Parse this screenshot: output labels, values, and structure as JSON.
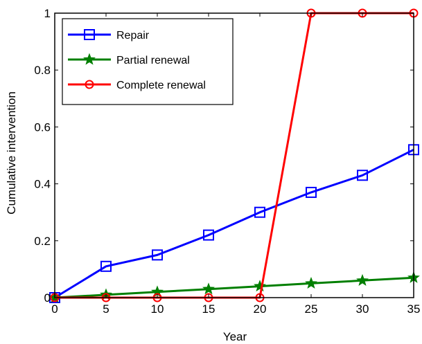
{
  "chart_data": {
    "type": "line",
    "title": "",
    "xlabel": "Year",
    "ylabel": "Cumulative intervention",
    "xlim": [
      0,
      35
    ],
    "ylim": [
      0,
      1
    ],
    "xticks": [
      0,
      5,
      10,
      15,
      20,
      25,
      30,
      35
    ],
    "yticks": [
      0,
      0.2,
      0.4,
      0.6,
      0.8,
      1
    ],
    "ytick_labels": [
      "0",
      "0.2",
      "0.4",
      "0.6",
      "0.8",
      "1"
    ],
    "grid": false,
    "legend_position": "top-left",
    "x": [
      0,
      5,
      10,
      15,
      20,
      25,
      30,
      35
    ],
    "series": [
      {
        "name": "Repair",
        "color": "#0000ff",
        "marker": "square",
        "values": [
          0,
          0.11,
          0.15,
          0.22,
          0.3,
          0.37,
          0.43,
          0.52
        ]
      },
      {
        "name": "Partial renewal",
        "color": "#007f00",
        "marker": "star",
        "values": [
          0,
          0.01,
          0.02,
          0.03,
          0.04,
          0.05,
          0.06,
          0.07
        ]
      },
      {
        "name": "Complete renewal",
        "color": "#ff0000",
        "marker": "circle",
        "values": [
          0,
          0,
          0,
          0,
          0,
          1,
          1,
          1
        ]
      }
    ]
  }
}
